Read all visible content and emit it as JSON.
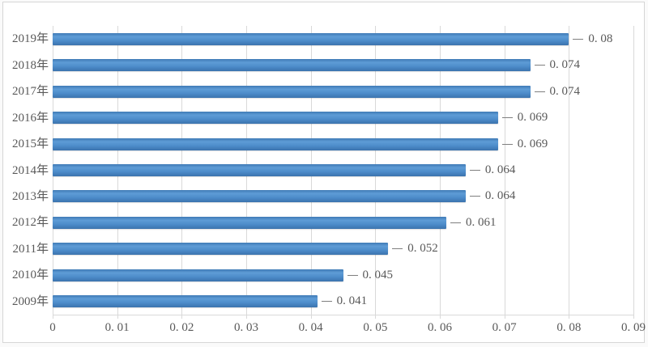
{
  "chart_data": {
    "type": "bar",
    "orientation": "horizontal",
    "title": "",
    "categories": [
      "2019年",
      "2018年",
      "2017年",
      "2016年",
      "2015年",
      "2014年",
      "2013年",
      "2012年",
      "2011年",
      "2010年",
      "2009年"
    ],
    "values": [
      0.08,
      0.074,
      0.074,
      0.069,
      0.069,
      0.064,
      0.064,
      0.061,
      0.052,
      0.045,
      0.041
    ],
    "value_labels": [
      "0. 08",
      "0. 074",
      "0. 074",
      "0. 069",
      "0. 069",
      "0. 064",
      "0. 064",
      "0. 061",
      "0. 052",
      "0. 045",
      "0. 041"
    ],
    "xlabel": "",
    "ylabel": "",
    "xlim": [
      0,
      0.09
    ],
    "x_ticks": {
      "values": [
        0,
        0.01,
        0.02,
        0.03,
        0.04,
        0.05,
        0.06,
        0.07,
        0.08,
        0.09
      ],
      "labels": [
        "0",
        "0. 01",
        "0. 02",
        "0. 03",
        "0. 04",
        "0. 05",
        "0. 06",
        "0. 07",
        "0. 08",
        "0. 09"
      ]
    },
    "grid": "vertical",
    "legend": "none"
  },
  "colors": {
    "bar_main": "#4d8cca",
    "bar_edge": "#3b73ae",
    "gridline": "#d9d9d9",
    "text": "#595959",
    "leader_line": "#7f7f7f",
    "frame_border": "#d6d6d6",
    "background": "#ffffff"
  }
}
